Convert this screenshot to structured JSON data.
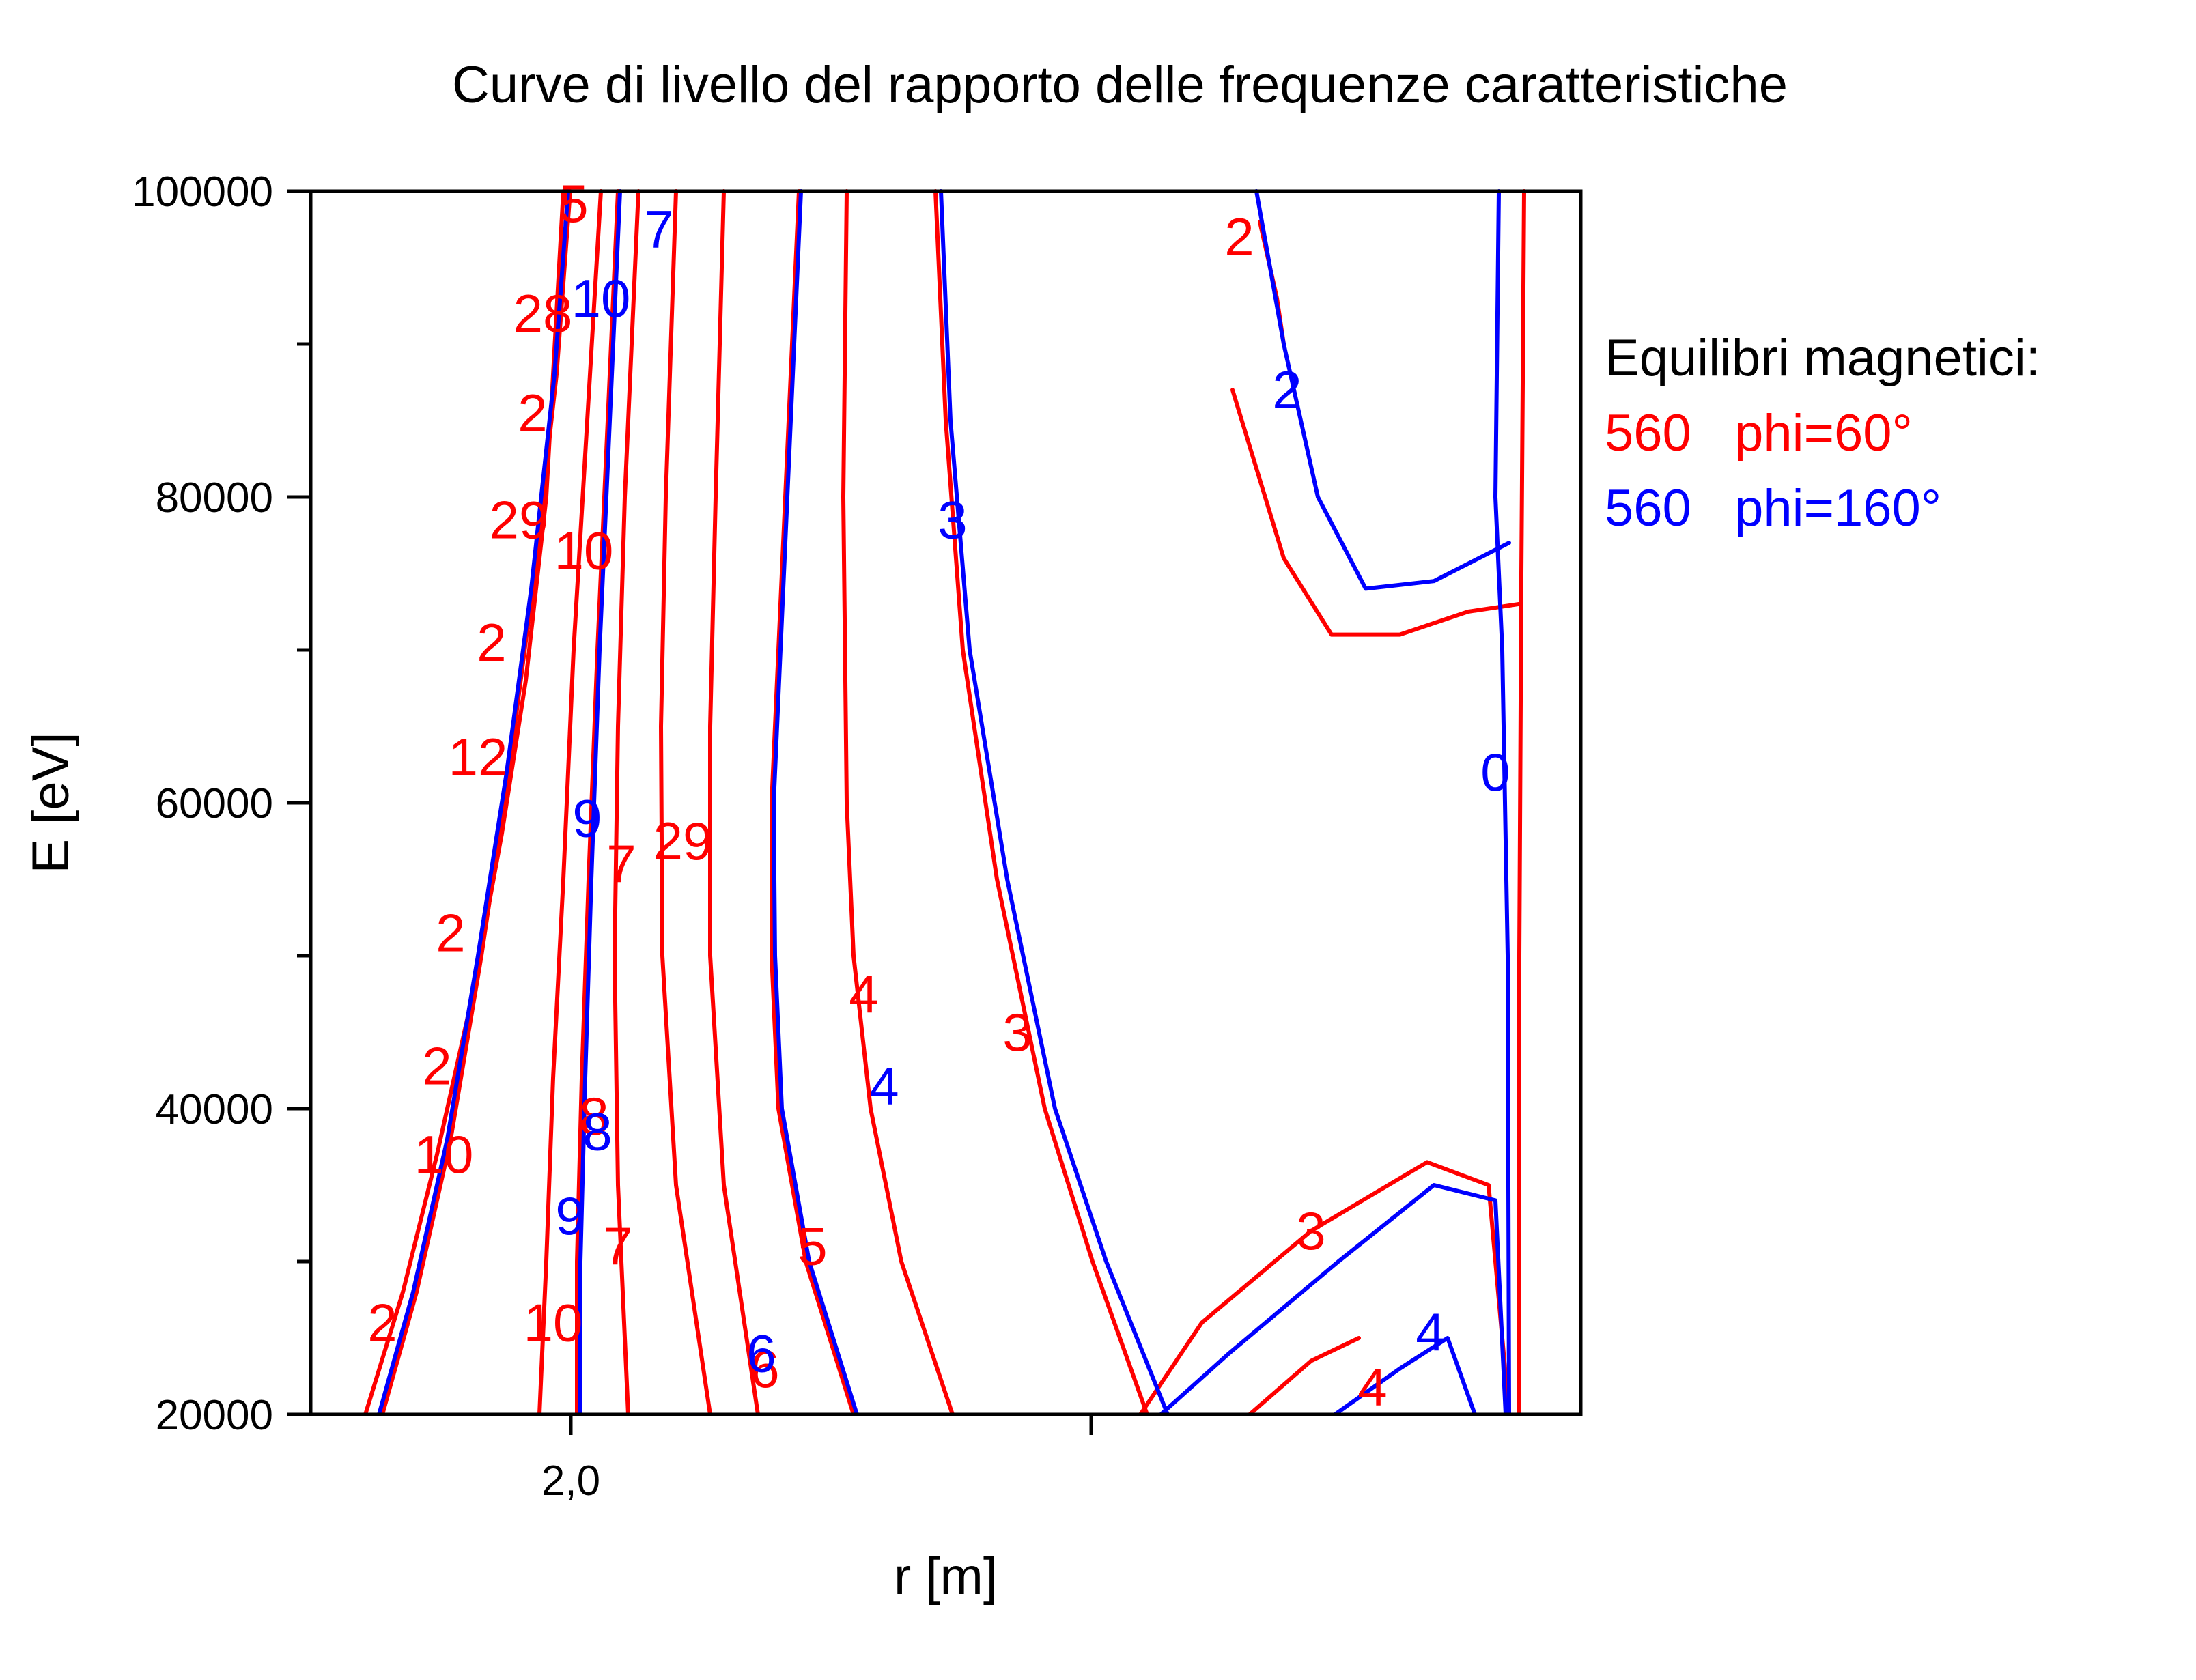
{
  "chart_data": {
    "type": "contour",
    "title": "Curve di livello del rapporto delle frequenze caratteristiche",
    "xlabel": "r [m]",
    "ylabel": "E [eV]",
    "x_tick_labels": [
      "2,0"
    ],
    "y_tick_labels": [
      "20000",
      "40000",
      "60000",
      "80000",
      "100000"
    ],
    "ylim": [
      20000,
      100000
    ],
    "legend": {
      "title": "Equilibri magnetici:",
      "entries": [
        {
          "name": "560   phi=60°",
          "color": "#ff0000"
        },
        {
          "name": "560   phi=160°",
          "color": "#0000ff"
        }
      ]
    },
    "series": [
      {
        "name": "560   phi=60°",
        "color": "#ff0000",
        "level_labels": [
          {
            "text": "5",
            "e": 99200
          },
          {
            "text": "28",
            "e": 92000
          },
          {
            "text": "2",
            "e": 85500
          },
          {
            "text": "29",
            "e": 78500
          },
          {
            "text": "10",
            "e": 76500
          },
          {
            "text": "2",
            "e": 70500
          },
          {
            "text": "12",
            "e": 63000
          },
          {
            "text": "29",
            "e": 57500
          },
          {
            "text": "7",
            "e": 56000
          },
          {
            "text": "2",
            "e": 51500
          },
          {
            "text": "4",
            "e": 47500
          },
          {
            "text": "3",
            "e": 45000
          },
          {
            "text": "2",
            "e": 42800
          },
          {
            "text": "10",
            "e": 37000
          },
          {
            "text": "8",
            "e": 39500
          },
          {
            "text": "5",
            "e": 31000
          },
          {
            "text": "7",
            "e": 31000
          },
          {
            "text": "3",
            "e": 32000
          },
          {
            "text": "10",
            "e": 26000
          },
          {
            "text": "2",
            "e": 26000
          },
          {
            "text": "6",
            "e": 23000
          },
          {
            "text": "4",
            "e": 21800
          },
          {
            "text": "2",
            "e": 97000
          }
        ]
      },
      {
        "name": "560   phi=160°",
        "color": "#0000ff",
        "level_labels": [
          {
            "text": "7",
            "e": 97500
          },
          {
            "text": "10",
            "e": 93000
          },
          {
            "text": "2",
            "e": 87000
          },
          {
            "text": "3",
            "e": 78500
          },
          {
            "text": "9",
            "e": 59000
          },
          {
            "text": "0",
            "e": 62000
          },
          {
            "text": "4",
            "e": 41500
          },
          {
            "text": "8",
            "e": 38500
          },
          {
            "text": "9",
            "e": 33000
          },
          {
            "text": "6",
            "e": 24000
          },
          {
            "text": "4",
            "e": 25400
          }
        ]
      }
    ]
  }
}
